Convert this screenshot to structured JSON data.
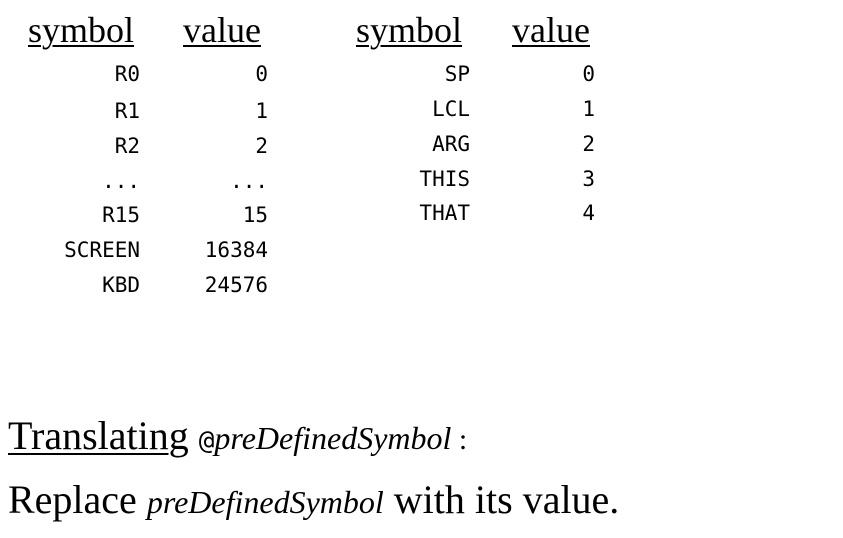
{
  "left_table": {
    "header_symbol": "symbol",
    "header_value": "value",
    "rows": [
      {
        "symbol": "R0",
        "value": "0"
      },
      {
        "symbol": "R1",
        "value": "1"
      },
      {
        "symbol": "R2",
        "value": "2"
      },
      {
        "symbol": "...",
        "value": "..."
      },
      {
        "symbol": "R15",
        "value": "15"
      },
      {
        "symbol": "SCREEN",
        "value": "16384"
      },
      {
        "symbol": "KBD",
        "value": "24576"
      }
    ]
  },
  "right_table": {
    "header_symbol": "symbol",
    "header_value": "value",
    "rows": [
      {
        "symbol": "SP",
        "value": "0"
      },
      {
        "symbol": "LCL",
        "value": "1"
      },
      {
        "symbol": "ARG",
        "value": "2"
      },
      {
        "symbol": "THIS",
        "value": "3"
      },
      {
        "symbol": "THAT",
        "value": "4"
      }
    ]
  },
  "heading": {
    "word": "Translating",
    "at_sign": "@",
    "symbol_name": "preDefinedSymbol",
    "colon": " :"
  },
  "instruction": {
    "before": "Replace ",
    "symbol_name": "preDefinedSymbol",
    "after": " with its value."
  }
}
